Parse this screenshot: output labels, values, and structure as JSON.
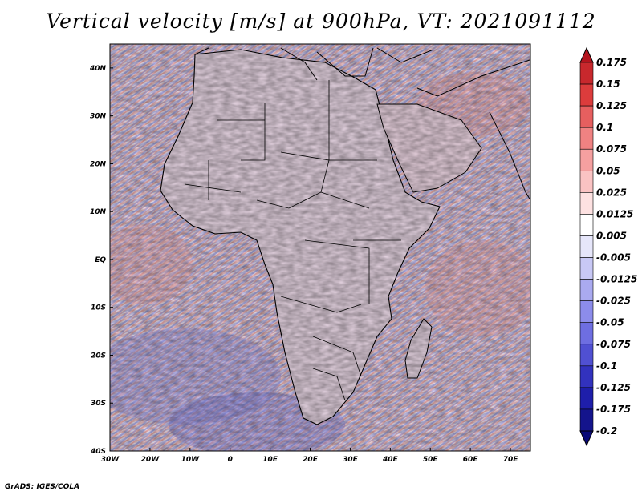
{
  "title": "Vertical velocity [m/s] at 900hPa, VT: 2021091112",
  "footer": "GrADS: IGES/COLA",
  "map": {
    "variable": "vertical velocity",
    "units": "m/s",
    "level": "900hPa",
    "valid_time": "2021091112",
    "lon_range": [
      -30,
      75
    ],
    "lat_range": [
      -40,
      45
    ],
    "lon_ticks": [
      "30W",
      "20W",
      "10W",
      "0",
      "10E",
      "20E",
      "30E",
      "40E",
      "50E",
      "60E",
      "70E"
    ],
    "lat_ticks": [
      "40N",
      "30N",
      "20N",
      "10N",
      "EQ",
      "10S",
      "20S",
      "30S",
      "40S"
    ]
  },
  "colorbar": {
    "labels": [
      "0.175",
      "0.15",
      "0.125",
      "0.1",
      "0.075",
      "0.05",
      "0.025",
      "0.0125",
      "0.005",
      "-0.005",
      "-0.0125",
      "-0.025",
      "-0.05",
      "-0.075",
      "-0.1",
      "-0.125",
      "-0.175",
      "-0.2"
    ],
    "colors": [
      "#b4141e",
      "#c8282d",
      "#dc3c3c",
      "#e65f5f",
      "#f08282",
      "#f5a0a0",
      "#fac3c3",
      "#fde1e1",
      "#ffffff",
      "#e6e6fa",
      "#c8c8f5",
      "#aaaaf0",
      "#8c8ceb",
      "#6e6ee1",
      "#5050d2",
      "#3232be",
      "#1e1eaa",
      "#14148c",
      "#0a0a78"
    ]
  }
}
